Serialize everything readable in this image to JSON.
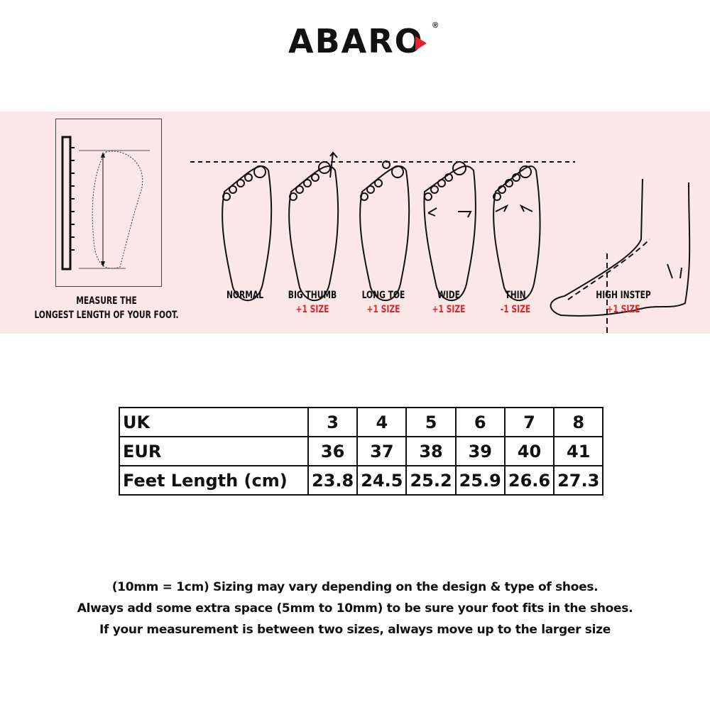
{
  "brand": {
    "name": "ABARO",
    "registered": "®",
    "accent": "#e8202a"
  },
  "measure": {
    "line1": "MEASURE THE",
    "line2": "LONGEST LENGTH OF YOUR FOOT."
  },
  "foot_types": [
    {
      "name": "NORMAL",
      "adjust": ""
    },
    {
      "name": "BIG THUMB",
      "adjust": "+1 SIZE"
    },
    {
      "name": "LONG TOE",
      "adjust": "+1 SIZE"
    },
    {
      "name": "WIDE",
      "adjust": "+1 SIZE"
    },
    {
      "name": "THIN",
      "adjust": "-1 SIZE"
    },
    {
      "name": "HIGH INSTEP",
      "adjust": "+1 SIZE"
    }
  ],
  "size_table": {
    "rows": [
      {
        "label": "UK",
        "values": [
          "3",
          "4",
          "5",
          "6",
          "7",
          "8"
        ]
      },
      {
        "label": "EUR",
        "values": [
          "36",
          "37",
          "38",
          "39",
          "40",
          "41"
        ]
      },
      {
        "label": "Feet Length (cm)",
        "values": [
          "23.8",
          "24.5",
          "25.2",
          "25.9",
          "26.6",
          "27.3"
        ]
      }
    ]
  },
  "notes": [
    "(10mm = 1cm) Sizing may vary depending on the design & type of shoes.",
    "Always add some extra space (5mm to 10mm) to be sure your foot fits in the shoes.",
    "If your measurement is between two sizes, always move up to the larger size"
  ]
}
